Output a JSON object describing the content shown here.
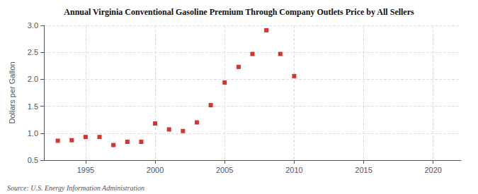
{
  "chart_data": {
    "type": "scatter",
    "title": "Annual Virginia Conventional Gasoline Premium Through Company Outlets Price by All Sellers",
    "ylabel": "Dollars per Gallon",
    "source": "Source: U.S. Energy Information Administration",
    "x": [
      1993,
      1994,
      1995,
      1996,
      1997,
      1998,
      1999,
      2000,
      2001,
      2002,
      2003,
      2004,
      2005,
      2006,
      2007,
      2008,
      2009,
      2010
    ],
    "values": [
      0.86,
      0.87,
      0.93,
      0.93,
      0.78,
      0.84,
      0.84,
      1.18,
      1.07,
      1.04,
      1.2,
      1.52,
      1.94,
      2.23,
      2.47,
      2.91,
      2.47,
      2.06
    ],
    "color": "#cc0000",
    "marker": "square",
    "xlim": [
      1992,
      2022
    ],
    "xticks": [
      1995,
      2000,
      2005,
      2010,
      2015,
      2020
    ],
    "ylim": [
      0.5,
      3.0
    ],
    "yticks": [
      0.5,
      {
        "value": 1.0,
        "label": "1.0"
      },
      1.5,
      {
        "value": 2.0,
        "label": "2.0"
      },
      2.5,
      {
        "value": 3.0,
        "label": "3.0"
      }
    ],
    "grid": true
  }
}
